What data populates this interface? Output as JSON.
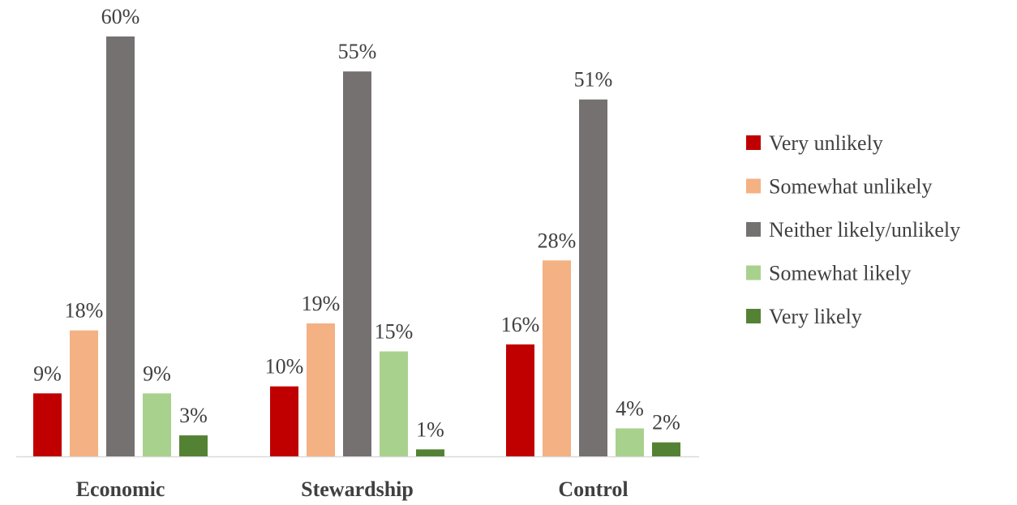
{
  "chart_data": {
    "type": "bar",
    "title": "",
    "xlabel": "",
    "ylabel": "",
    "ylim": [
      0,
      60
    ],
    "grid": false,
    "legend_position": "right",
    "categories": [
      "Economic",
      "Stewardship",
      "Control"
    ],
    "series": [
      {
        "name": "Very unlikely",
        "color": "#C00000",
        "values": [
          9,
          10,
          16
        ],
        "labels": [
          "9%",
          "10%",
          "16%"
        ]
      },
      {
        "name": "Somewhat unlikely",
        "color": "#F4B183",
        "values": [
          18,
          19,
          28
        ],
        "labels": [
          "18%",
          "19%",
          "28%"
        ]
      },
      {
        "name": "Neither likely/unlikely",
        "color": "#767171",
        "values": [
          60,
          55,
          51
        ],
        "labels": [
          "60%",
          "55%",
          "51%"
        ]
      },
      {
        "name": "Somewhat likely",
        "color": "#A9D18E",
        "values": [
          9,
          15,
          4
        ],
        "labels": [
          "9%",
          "15%",
          "4%"
        ]
      },
      {
        "name": "Very likely",
        "color": "#548235",
        "values": [
          3,
          1,
          2
        ],
        "labels": [
          "3%",
          "1%",
          "2%"
        ]
      }
    ]
  }
}
